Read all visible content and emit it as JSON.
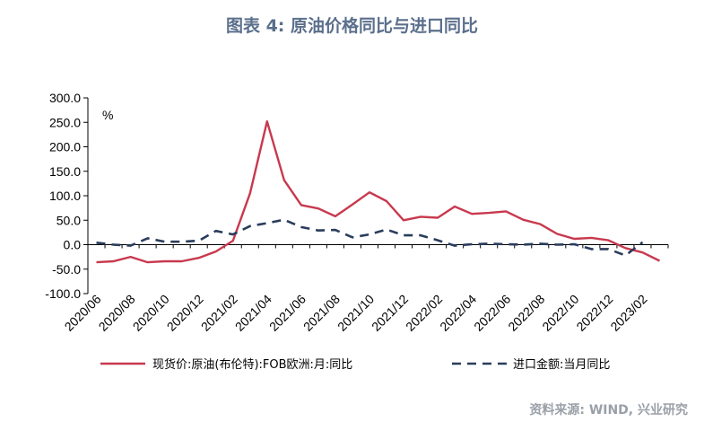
{
  "title": "图表 4:   原油价格同比与进口同比",
  "source": "资料来源: WIND, 兴业研究",
  "chart_data": {
    "type": "line",
    "unit": "%",
    "ylim": [
      -100,
      300
    ],
    "yticks": [
      "300.0",
      "250.0",
      "200.0",
      "150.0",
      "100.0",
      "50.0",
      "0.0",
      "-50.0",
      "-100.0"
    ],
    "xticks": [
      "2020/06",
      "2020/08",
      "2020/10",
      "2020/12",
      "2021/02",
      "2021/04",
      "2021/06",
      "2021/08",
      "2021/10",
      "2021/12",
      "2022/02",
      "2022/04",
      "2022/06",
      "2022/08",
      "2022/10",
      "2022/12",
      "2023/02"
    ],
    "x": [
      "2020/06",
      "2020/07",
      "2020/08",
      "2020/09",
      "2020/10",
      "2020/11",
      "2020/12",
      "2021/01",
      "2021/02",
      "2021/03",
      "2021/04",
      "2021/05",
      "2021/06",
      "2021/07",
      "2021/08",
      "2021/09",
      "2021/10",
      "2021/11",
      "2021/12",
      "2022/01",
      "2022/02",
      "2022/03",
      "2022/04",
      "2022/05",
      "2022/06",
      "2022/07",
      "2022/08",
      "2022/09",
      "2022/10",
      "2022/11",
      "2022/12",
      "2023/01",
      "2023/02",
      "2023/03"
    ],
    "series": [
      {
        "name": "现货价:原油(布伦特):FOB欧洲:月:同比",
        "color": "#c8394e",
        "dash": false,
        "values": [
          -36,
          -34,
          -25,
          -36,
          -34,
          -34,
          -27,
          -14,
          8,
          105,
          252,
          132,
          81,
          74,
          58,
          82,
          107,
          89,
          50,
          57,
          55,
          78,
          63,
          65,
          68,
          51,
          42,
          22,
          12,
          14,
          9,
          -7,
          -16,
          -33
        ]
      },
      {
        "name": "进口金额:当月同比",
        "color": "#2a3d5c",
        "dash": true,
        "values": [
          4,
          0,
          -2,
          13,
          6,
          6,
          8,
          28,
          21,
          38,
          44,
          51,
          36,
          29,
          30,
          15,
          21,
          31,
          19,
          19,
          9,
          -2,
          1,
          2,
          1,
          0,
          2,
          0,
          1,
          -9,
          -9,
          -22,
          5,
          null
        ]
      }
    ]
  }
}
